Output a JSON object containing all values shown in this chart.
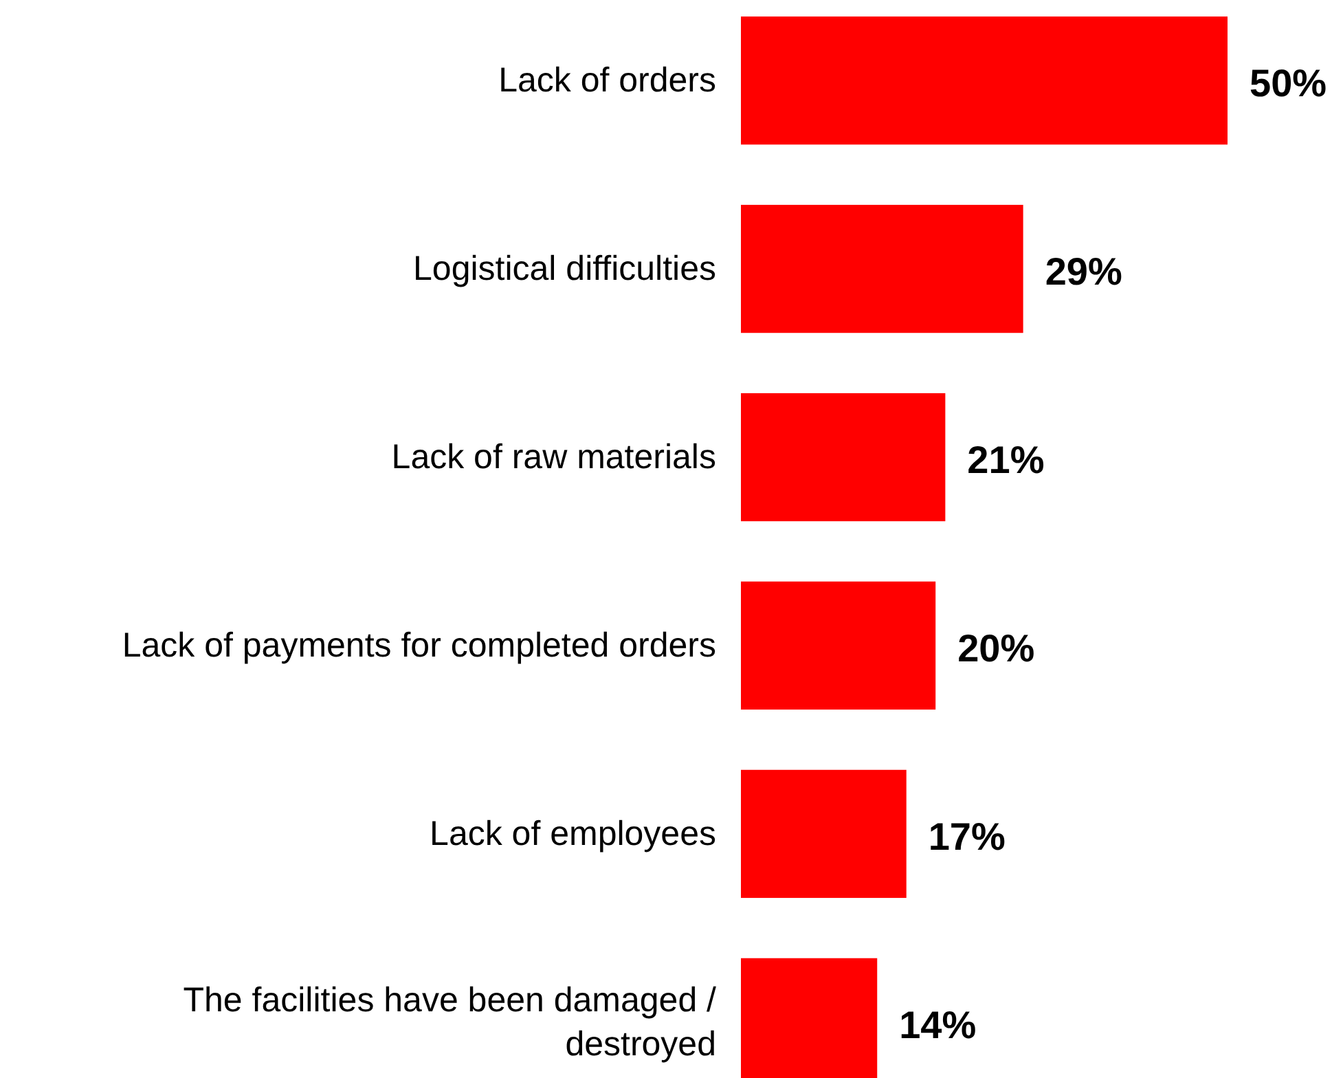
{
  "chart_data": {
    "type": "bar",
    "orientation": "horizontal",
    "categories": [
      "Lack of orders",
      "Logistical difficulties",
      "Lack of raw materials",
      "Lack of payments for completed orders",
      "Lack of employees",
      "The facilities have been damaged / destroyed"
    ],
    "values": [
      50,
      29,
      21,
      20,
      17,
      14
    ],
    "value_labels": [
      "50%",
      "29%",
      "21%",
      "20%",
      "17%",
      "14%"
    ],
    "color": "#ff0000"
  }
}
